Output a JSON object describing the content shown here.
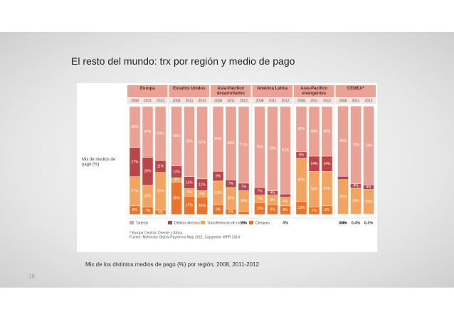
{
  "slide_title": "El resto del mundo: trx por región y medio de pago",
  "caption": "Mix de los distintos medios de pago (%) por región, 2008, 2011-2012",
  "page_number": "16",
  "chart_data": {
    "type": "bar",
    "stacked": true,
    "ylabel": "Mix de medios de pago (%)",
    "groups": [
      "Europa",
      "Estados Unidos",
      "Asia-Pacífico desarrollados",
      "América Latina",
      "Asia-Pacífico emergentes",
      "CEMEA*"
    ],
    "categories": [
      "2008",
      "2011",
      "2012",
      "2008",
      "2011",
      "2012",
      "2008",
      "2011",
      "2012",
      "2008",
      "2011",
      "2012",
      "2008",
      "2011",
      "2012",
      "2008",
      "2011",
      "2012"
    ],
    "ylim": [
      0,
      100
    ],
    "series": [
      {
        "name": "Cheques",
        "color": "#e9742c",
        "values": [
          8,
          7,
          4,
          30,
          17,
          16,
          9,
          5,
          3,
          11,
          9,
          8,
          12,
          7,
          8,
          0.4,
          0.4,
          0.3
        ],
        "value_labels": [
          "8%",
          "7%",
          "4%",
          "30%",
          "17%",
          "16%",
          "9%",
          "5%",
          "3%",
          "11%",
          "9%",
          "8%",
          "12%",
          "7%",
          "8%",
          "0,4%",
          "0,4%",
          "0,3%"
        ]
      },
      {
        "name": "Transferencias de crédito",
        "color": "#f2a462",
        "values": [
          27,
          20,
          35,
          4,
          7,
          6,
          22,
          20,
          19,
          7,
          9,
          8,
          40,
          33,
          32,
          32,
          24,
          23
        ],
        "value_labels": [
          "27%",
          "20%",
          "35%",
          "4%",
          "7%",
          "6%",
          "22%",
          "20%",
          "19%",
          "7%",
          "9%",
          "8%",
          "40%",
          "33%",
          "32%",
          "32%",
          "24%",
          "23%"
        ]
      },
      {
        "name": "Débitos directos",
        "color": "#b9464b",
        "values": [
          27,
          26,
          11,
          11,
          11,
          11,
          9,
          7,
          7,
          7,
          4,
          3,
          6,
          14,
          14,
          3,
          4,
          4
        ],
        "value_labels": [
          "27%",
          "26%",
          "11%",
          "11%",
          "11%",
          "11%",
          "9%",
          "7%",
          "7%",
          "7%",
          "4%",
          "3%",
          "6%",
          "14%",
          "14%",
          "3%",
          "4%",
          "4%"
        ]
      },
      {
        "name": "Tarjetas",
        "color": "#e9a396",
        "values": [
          38,
          47,
          50,
          55,
          65,
          67,
          60,
          68,
          71,
          75,
          78,
          81,
          42,
          46,
          46,
          65,
          72,
          73
        ],
        "value_labels": [
          "38%",
          "47%",
          "50%",
          "55%",
          "65%",
          "67%",
          "60%",
          "68%",
          "71%",
          "75%",
          "78%",
          "81%",
          "42%",
          "46%",
          "46%",
          "65%",
          "72%",
          "73%"
        ]
      }
    ],
    "notes": [
      "* Europa Central, Oriente y África.",
      "Fuente: McKinsey Global Payments Map 2011, Capgemini WPR 2014."
    ]
  }
}
